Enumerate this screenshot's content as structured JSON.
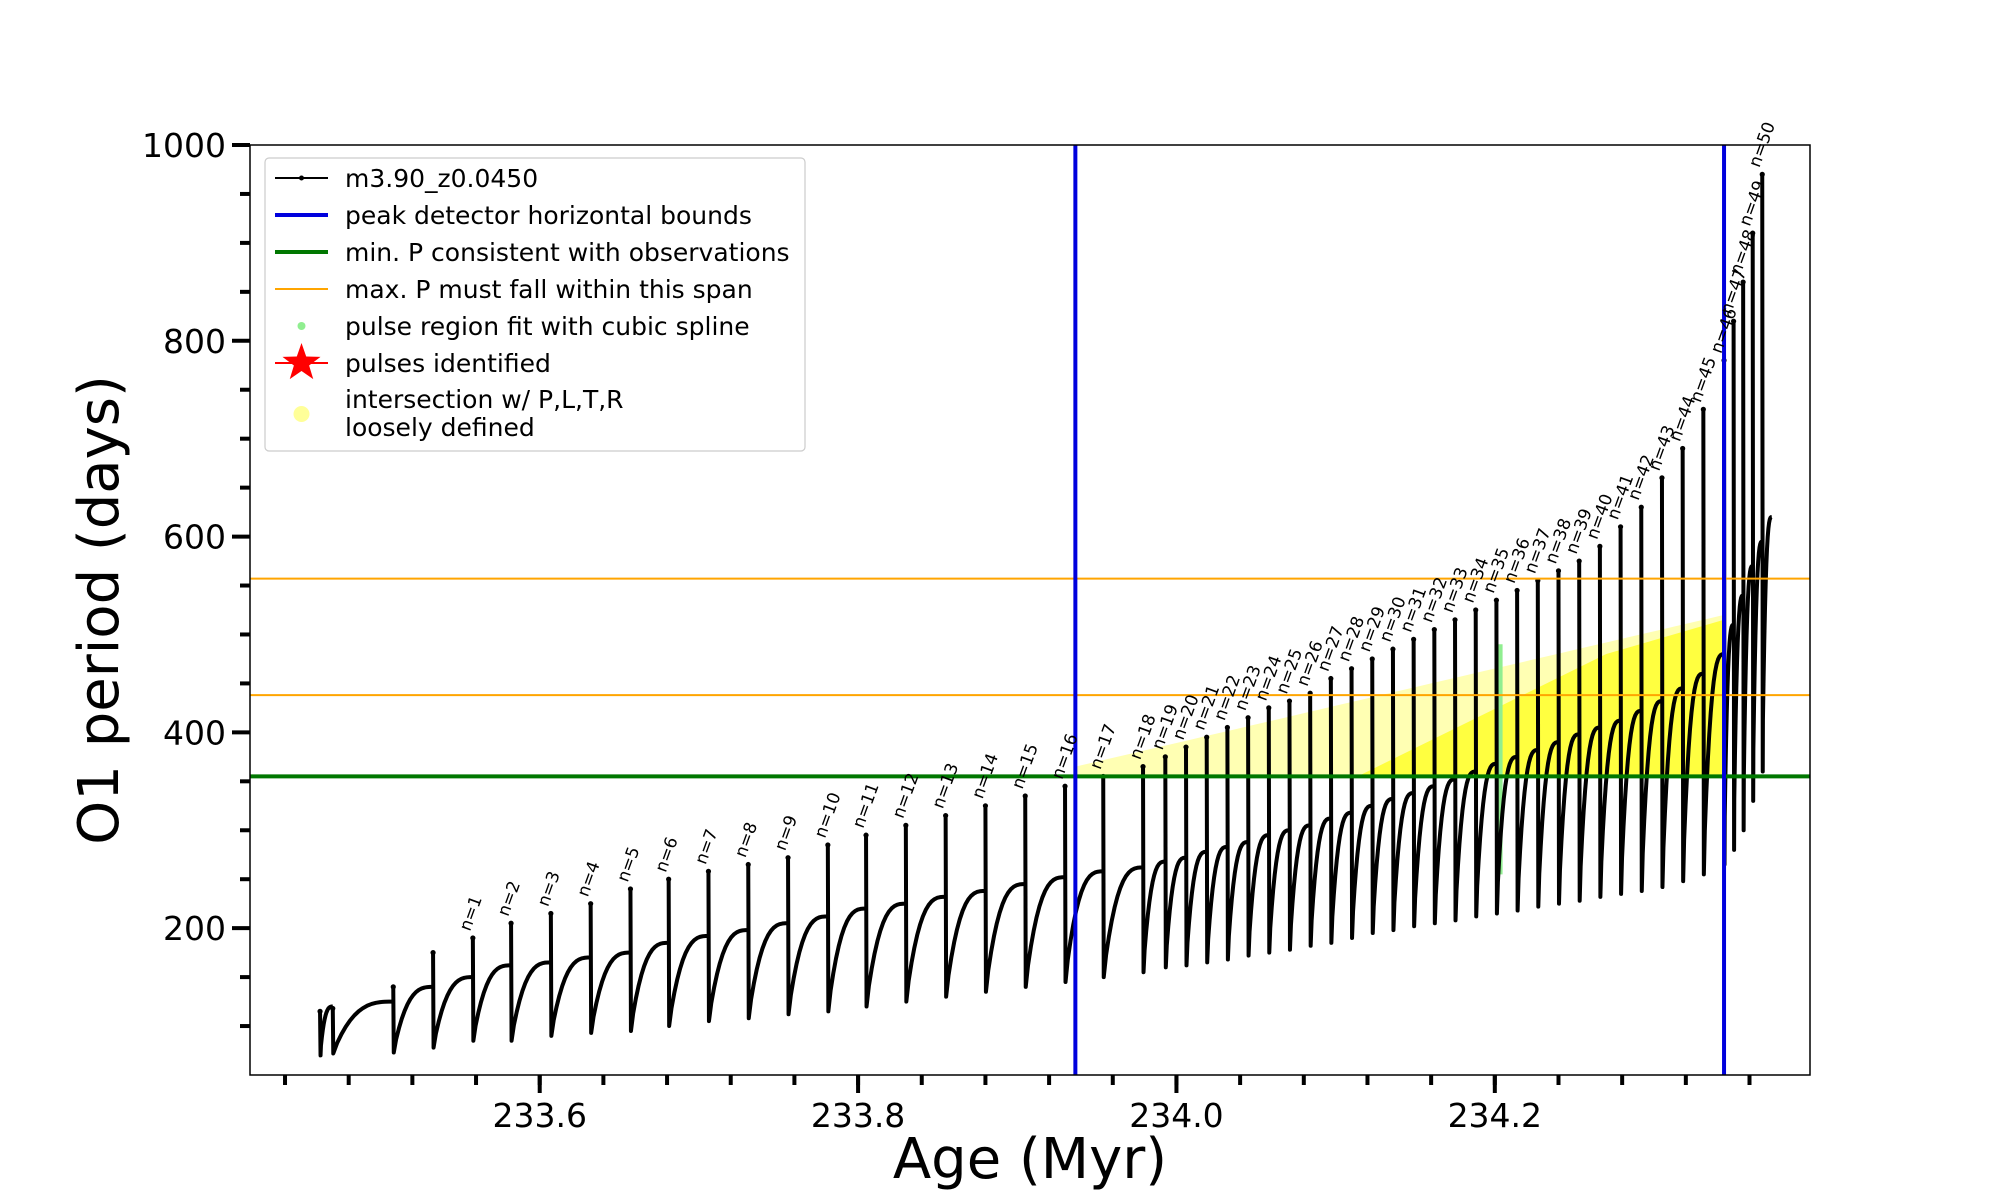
{
  "chart_data": {
    "type": "line",
    "xlabel": "Age (Myr)",
    "ylabel": "O1 period (days)",
    "xlim": [
      233.418,
      234.398
    ],
    "ylim": [
      50,
      1000
    ],
    "x_ticks": [
      233.6,
      233.8,
      234.0,
      234.2
    ],
    "x_tick_labels": [
      "233.6",
      "233.8",
      "234.0",
      "234.2"
    ],
    "y_ticks": [
      200,
      400,
      600,
      800,
      1000
    ],
    "y_tick_labels": [
      "200",
      "400",
      "600",
      "800",
      "1000"
    ],
    "grid": false,
    "legend_position": "top-left",
    "legend": [
      {
        "label": "m3.90_z0.0450",
        "kind": "line-marker",
        "color": "#000000"
      },
      {
        "label": "peak detector horizontal bounds",
        "kind": "line",
        "color": "#0000dd"
      },
      {
        "label": "min. P consistent with observations",
        "kind": "line",
        "color": "#007700"
      },
      {
        "label": "max. P must fall within this span",
        "kind": "thin-line",
        "color": "#ffa500"
      },
      {
        "label": "pulse region fit with cubic spline",
        "kind": "dot",
        "color": "#90ee90"
      },
      {
        "label": "pulses identified",
        "kind": "star",
        "color": "#ff0000"
      },
      {
        "label_lines": [
          "intersection w/ P,L,T,R",
          "loosely defined"
        ],
        "kind": "dot",
        "color": "#ffff99"
      }
    ],
    "vertical_lines": [
      {
        "x": 233.9365,
        "color": "#0000dd"
      },
      {
        "x": 234.344,
        "color": "#0000dd"
      }
    ],
    "hlines_green": [
      {
        "y": 355,
        "color": "#007700"
      }
    ],
    "hlines_orange": [
      {
        "y": 557,
        "color": "#ffa500"
      },
      {
        "y": 438,
        "color": "#ffa500"
      }
    ],
    "series": [
      {
        "name": "m3.90_z0.0450",
        "pulses": [
          {
            "x_start": 233.462,
            "x_end": 233.47,
            "min": 70,
            "envelope": 120,
            "spike": 115
          },
          {
            "x_start": 233.47,
            "x_end": 233.508,
            "min": 72,
            "envelope": 125,
            "spike": 118
          },
          {
            "x_start": 233.508,
            "x_end": 233.533,
            "min": 73,
            "envelope": 140,
            "spike": 140
          },
          {
            "x_start": 233.533,
            "x_end": 233.558,
            "min": 78,
            "envelope": 150,
            "spike": 175
          },
          {
            "x_start": 233.558,
            "x_end": 233.582,
            "min": 85,
            "envelope": 162,
            "spike": 190,
            "label": "n=1"
          },
          {
            "x_start": 233.582,
            "x_end": 233.607,
            "min": 85,
            "envelope": 165,
            "spike": 205,
            "label": "n=2"
          },
          {
            "x_start": 233.607,
            "x_end": 233.632,
            "min": 90,
            "envelope": 170,
            "spike": 215,
            "label": "n=3"
          },
          {
            "x_start": 233.632,
            "x_end": 233.657,
            "min": 93,
            "envelope": 175,
            "spike": 225,
            "label": "n=4"
          },
          {
            "x_start": 233.657,
            "x_end": 233.681,
            "min": 95,
            "envelope": 185,
            "spike": 240,
            "label": "n=5"
          },
          {
            "x_start": 233.681,
            "x_end": 233.706,
            "min": 100,
            "envelope": 192,
            "spike": 250,
            "label": "n=6"
          },
          {
            "x_start": 233.706,
            "x_end": 233.731,
            "min": 105,
            "envelope": 198,
            "spike": 258,
            "label": "n=7"
          },
          {
            "x_start": 233.731,
            "x_end": 233.756,
            "min": 108,
            "envelope": 205,
            "spike": 265,
            "label": "n=8"
          },
          {
            "x_start": 233.756,
            "x_end": 233.781,
            "min": 112,
            "envelope": 212,
            "spike": 272,
            "label": "n=9"
          },
          {
            "x_start": 233.781,
            "x_end": 233.805,
            "min": 115,
            "envelope": 220,
            "spike": 285,
            "label": "n=10"
          },
          {
            "x_start": 233.805,
            "x_end": 233.83,
            "min": 120,
            "envelope": 225,
            "spike": 295,
            "label": "n=11"
          },
          {
            "x_start": 233.83,
            "x_end": 233.855,
            "min": 125,
            "envelope": 232,
            "spike": 305,
            "label": "n=12"
          },
          {
            "x_start": 233.855,
            "x_end": 233.88,
            "min": 130,
            "envelope": 238,
            "spike": 315,
            "label": "n=13"
          },
          {
            "x_start": 233.88,
            "x_end": 233.905,
            "min": 135,
            "envelope": 245,
            "spike": 325,
            "label": "n=14"
          },
          {
            "x_start": 233.905,
            "x_end": 233.93,
            "min": 140,
            "envelope": 252,
            "spike": 335,
            "label": "n=15"
          },
          {
            "x_start": 233.93,
            "x_end": 233.954,
            "min": 145,
            "envelope": 258,
            "spike": 345,
            "label": "n=16"
          },
          {
            "x_start": 233.954,
            "x_end": 233.979,
            "min": 150,
            "envelope": 262,
            "spike": 355,
            "label": "n=17"
          },
          {
            "x_start": 233.979,
            "x_end": 233.993,
            "min": 155,
            "envelope": 268,
            "spike": 365,
            "label": "n=18"
          },
          {
            "x_start": 233.993,
            "x_end": 234.006,
            "min": 160,
            "envelope": 272,
            "spike": 375,
            "label": "n=19"
          },
          {
            "x_start": 234.006,
            "x_end": 234.019,
            "min": 162,
            "envelope": 278,
            "spike": 385,
            "label": "n=20"
          },
          {
            "x_start": 234.019,
            "x_end": 234.032,
            "min": 165,
            "envelope": 283,
            "spike": 395,
            "label": "n=21"
          },
          {
            "x_start": 234.032,
            "x_end": 234.045,
            "min": 168,
            "envelope": 288,
            "spike": 405,
            "label": "n=22"
          },
          {
            "x_start": 234.045,
            "x_end": 234.058,
            "min": 172,
            "envelope": 295,
            "spike": 415,
            "label": "n=23"
          },
          {
            "x_start": 234.058,
            "x_end": 234.071,
            "min": 175,
            "envelope": 300,
            "spike": 425,
            "label": "n=24"
          },
          {
            "x_start": 234.071,
            "x_end": 234.084,
            "min": 178,
            "envelope": 305,
            "spike": 432,
            "label": "n=25"
          },
          {
            "x_start": 234.084,
            "x_end": 234.097,
            "min": 182,
            "envelope": 312,
            "spike": 440,
            "label": "n=26"
          },
          {
            "x_start": 234.097,
            "x_end": 234.11,
            "min": 185,
            "envelope": 318,
            "spike": 455,
            "label": "n=27"
          },
          {
            "x_start": 234.11,
            "x_end": 234.123,
            "min": 190,
            "envelope": 325,
            "spike": 465,
            "label": "n=28"
          },
          {
            "x_start": 234.123,
            "x_end": 234.136,
            "min": 195,
            "envelope": 332,
            "spike": 475,
            "label": "n=29"
          },
          {
            "x_start": 234.136,
            "x_end": 234.149,
            "min": 198,
            "envelope": 338,
            "spike": 485,
            "label": "n=30"
          },
          {
            "x_start": 234.149,
            "x_end": 234.162,
            "min": 202,
            "envelope": 345,
            "spike": 495,
            "label": "n=31"
          },
          {
            "x_start": 234.162,
            "x_end": 234.175,
            "min": 205,
            "envelope": 352,
            "spike": 505,
            "label": "n=32"
          },
          {
            "x_start": 234.175,
            "x_end": 234.188,
            "min": 208,
            "envelope": 360,
            "spike": 515,
            "label": "n=33"
          },
          {
            "x_start": 234.188,
            "x_end": 234.201,
            "min": 212,
            "envelope": 368,
            "spike": 525,
            "label": "n=34"
          },
          {
            "x_start": 234.201,
            "x_end": 234.214,
            "min": 215,
            "envelope": 375,
            "spike": 535,
            "label": "n=35"
          },
          {
            "x_start": 234.214,
            "x_end": 234.227,
            "min": 218,
            "envelope": 382,
            "spike": 545,
            "label": "n=36"
          },
          {
            "x_start": 234.227,
            "x_end": 234.24,
            "min": 222,
            "envelope": 390,
            "spike": 555,
            "label": "n=37"
          },
          {
            "x_start": 234.24,
            "x_end": 234.253,
            "min": 225,
            "envelope": 398,
            "spike": 565,
            "label": "n=38"
          },
          {
            "x_start": 234.253,
            "x_end": 234.266,
            "min": 228,
            "envelope": 405,
            "spike": 575,
            "label": "n=39"
          },
          {
            "x_start": 234.266,
            "x_end": 234.279,
            "min": 232,
            "envelope": 412,
            "spike": 590,
            "label": "n=40"
          },
          {
            "x_start": 234.279,
            "x_end": 234.292,
            "min": 235,
            "envelope": 422,
            "spike": 610,
            "label": "n=41"
          },
          {
            "x_start": 234.292,
            "x_end": 234.305,
            "min": 238,
            "envelope": 432,
            "spike": 630,
            "label": "n=42"
          },
          {
            "x_start": 234.305,
            "x_end": 234.318,
            "min": 242,
            "envelope": 445,
            "spike": 660,
            "label": "n=43"
          },
          {
            "x_start": 234.318,
            "x_end": 234.331,
            "min": 248,
            "envelope": 460,
            "spike": 690,
            "label": "n=44"
          },
          {
            "x_start": 234.331,
            "x_end": 234.344,
            "min": 255,
            "envelope": 480,
            "spike": 730,
            "label": "n=45"
          },
          {
            "x_start": 234.344,
            "x_end": 234.35,
            "min": 265,
            "envelope": 510,
            "spike": 780,
            "label": "n=46"
          },
          {
            "x_start": 234.35,
            "x_end": 234.356,
            "min": 280,
            "envelope": 540,
            "spike": 820,
            "label": "n=47"
          },
          {
            "x_start": 234.356,
            "x_end": 234.362,
            "min": 300,
            "envelope": 570,
            "spike": 860,
            "label": "n=48"
          },
          {
            "x_start": 234.362,
            "x_end": 234.368,
            "min": 330,
            "envelope": 595,
            "spike": 910,
            "label": "n=49"
          },
          {
            "x_start": 234.368,
            "x_end": 234.374,
            "min": 360,
            "envelope": 620,
            "spike": 970,
            "label": "n=50"
          }
        ]
      }
    ],
    "intersection_band": {
      "x_range": [
        233.9365,
        234.344
      ],
      "y_range": [
        355,
        520
      ],
      "color": "#ffff99"
    },
    "spline_fit_region": {
      "x": 234.203,
      "y_range": [
        255,
        490
      ],
      "color": "#90ee90"
    }
  }
}
